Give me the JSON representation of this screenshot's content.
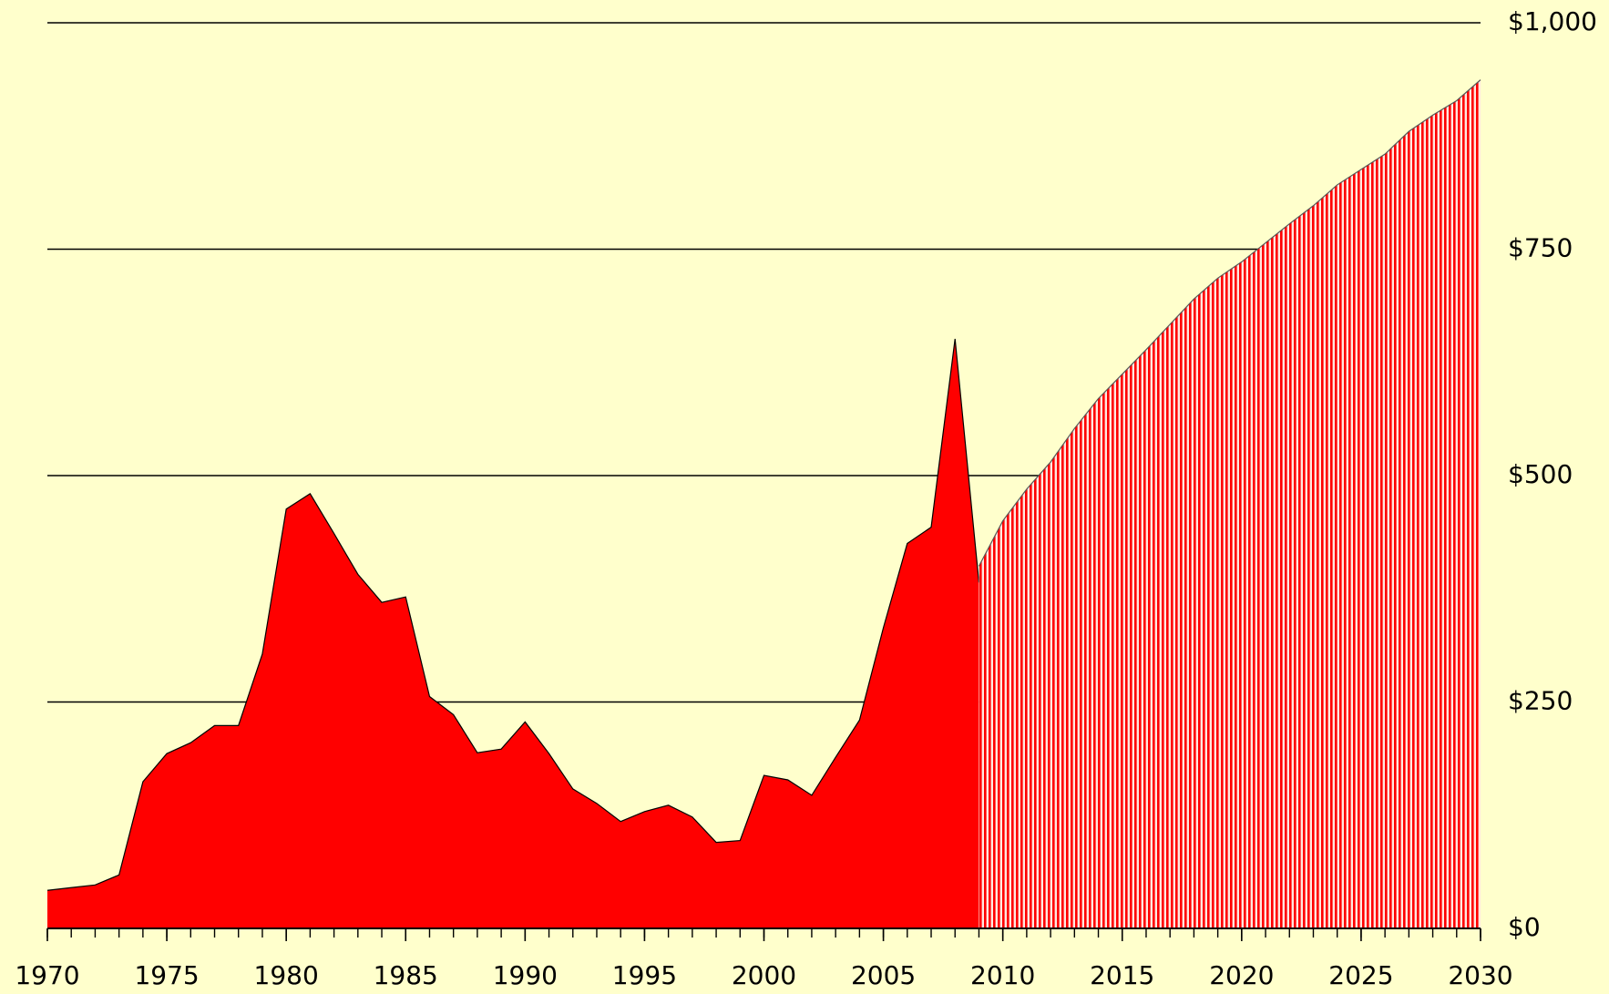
{
  "chart_data": {
    "type": "area",
    "x": [
      1970,
      1971,
      1972,
      1973,
      1974,
      1975,
      1976,
      1977,
      1978,
      1979,
      1980,
      1981,
      1982,
      1983,
      1984,
      1985,
      1986,
      1987,
      1988,
      1989,
      1990,
      1991,
      1992,
      1993,
      1994,
      1995,
      1996,
      1997,
      1998,
      1999,
      2000,
      2001,
      2002,
      2003,
      2004,
      2005,
      2006,
      2007,
      2008,
      2009,
      2010,
      2011,
      2012,
      2013,
      2014,
      2015,
      2016,
      2017,
      2018,
      2019,
      2020,
      2021,
      2022,
      2023,
      2024,
      2025,
      2026,
      2027,
      2028,
      2029,
      2030
    ],
    "series": [
      {
        "color": "#ff0000",
        "pattern": "solid",
        "values": [
          42,
          45,
          48,
          59,
          162,
          193,
          205,
          224,
          224,
          303,
          463,
          480,
          436,
          391,
          360,
          366,
          256,
          236,
          194,
          198,
          228,
          193,
          154,
          138,
          118,
          129,
          136,
          123,
          95,
          97,
          169,
          164,
          147,
          189,
          230,
          332,
          425,
          443,
          651,
          382,
          null,
          null,
          null,
          null,
          null,
          null,
          null,
          null,
          null,
          null,
          null,
          null,
          null,
          null,
          null,
          null,
          null,
          null,
          null,
          null,
          null
        ]
      },
      {
        "color": "#ff0000",
        "pattern": "hatched",
        "values": [
          null,
          null,
          null,
          null,
          null,
          null,
          null,
          null,
          null,
          null,
          null,
          null,
          null,
          null,
          null,
          null,
          null,
          null,
          null,
          null,
          null,
          null,
          null,
          null,
          null,
          null,
          null,
          null,
          null,
          null,
          null,
          null,
          null,
          null,
          null,
          null,
          null,
          null,
          null,
          400,
          450,
          485,
          515,
          552,
          585,
          612,
          639,
          667,
          695,
          718,
          736,
          757,
          778,
          798,
          821,
          838,
          855,
          880,
          898,
          914,
          937
        ]
      }
    ],
    "xlim": [
      1970,
      2030
    ],
    "xticks": [
      1970,
      1975,
      1980,
      1985,
      1990,
      1995,
      2000,
      2005,
      2010,
      2015,
      2020,
      2025,
      2030
    ],
    "ylim": [
      0,
      1000
    ],
    "yticks": [
      {
        "value": 0,
        "label": "$0"
      },
      {
        "value": 250,
        "label": "$250"
      },
      {
        "value": 500,
        "label": "$500"
      },
      {
        "value": 750,
        "label": "$750"
      },
      {
        "value": 1000,
        "label": "$1,000"
      }
    ],
    "y_axis_side": "right",
    "grid": true
  }
}
